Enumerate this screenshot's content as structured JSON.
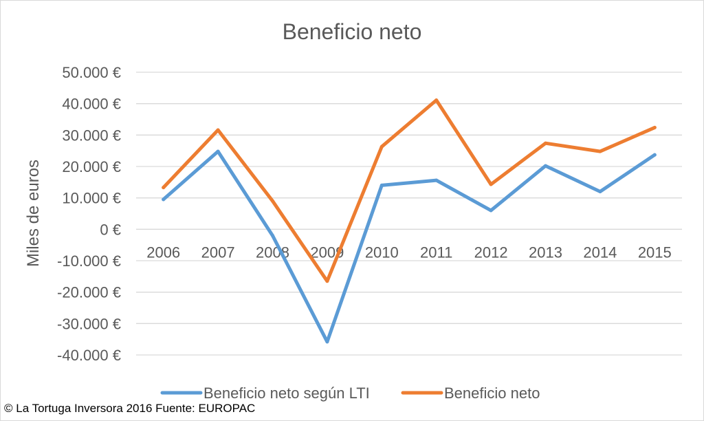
{
  "chart_data": {
    "type": "line",
    "title": "Beneficio neto",
    "xlabel": "",
    "ylabel": "Miles de euros",
    "categories": [
      "2006",
      "2007",
      "2008",
      "2009",
      "2010",
      "2011",
      "2012",
      "2013",
      "2014",
      "2015"
    ],
    "yticks": [
      {
        "value": 50000,
        "label": "50.000 €"
      },
      {
        "value": 40000,
        "label": "40.000 €"
      },
      {
        "value": 30000,
        "label": "30.000 €"
      },
      {
        "value": 20000,
        "label": "20.000 €"
      },
      {
        "value": 10000,
        "label": "10.000 €"
      },
      {
        "value": 0,
        "label": "0 €"
      },
      {
        "value": -10000,
        "label": "-10.000 €"
      },
      {
        "value": -20000,
        "label": "-20.000 €"
      },
      {
        "value": -30000,
        "label": "-30.000 €"
      },
      {
        "value": -40000,
        "label": "-40.000 €"
      }
    ],
    "ylim": [
      -40000,
      50000
    ],
    "grid": true,
    "legend_position": "bottom",
    "series": [
      {
        "name": "Beneficio neto según LTI",
        "color": "#5b9bd5",
        "values": [
          9500,
          24800,
          -2000,
          -35800,
          14000,
          15600,
          6000,
          20200,
          12000,
          23700
        ]
      },
      {
        "name": "Beneficio neto",
        "color": "#ed7d31",
        "values": [
          13300,
          31600,
          9000,
          -16500,
          26300,
          41100,
          14300,
          27400,
          24800,
          32400
        ]
      }
    ]
  },
  "footer": "© La Tortuga Inversora 2016 Fuente: EUROPAC"
}
